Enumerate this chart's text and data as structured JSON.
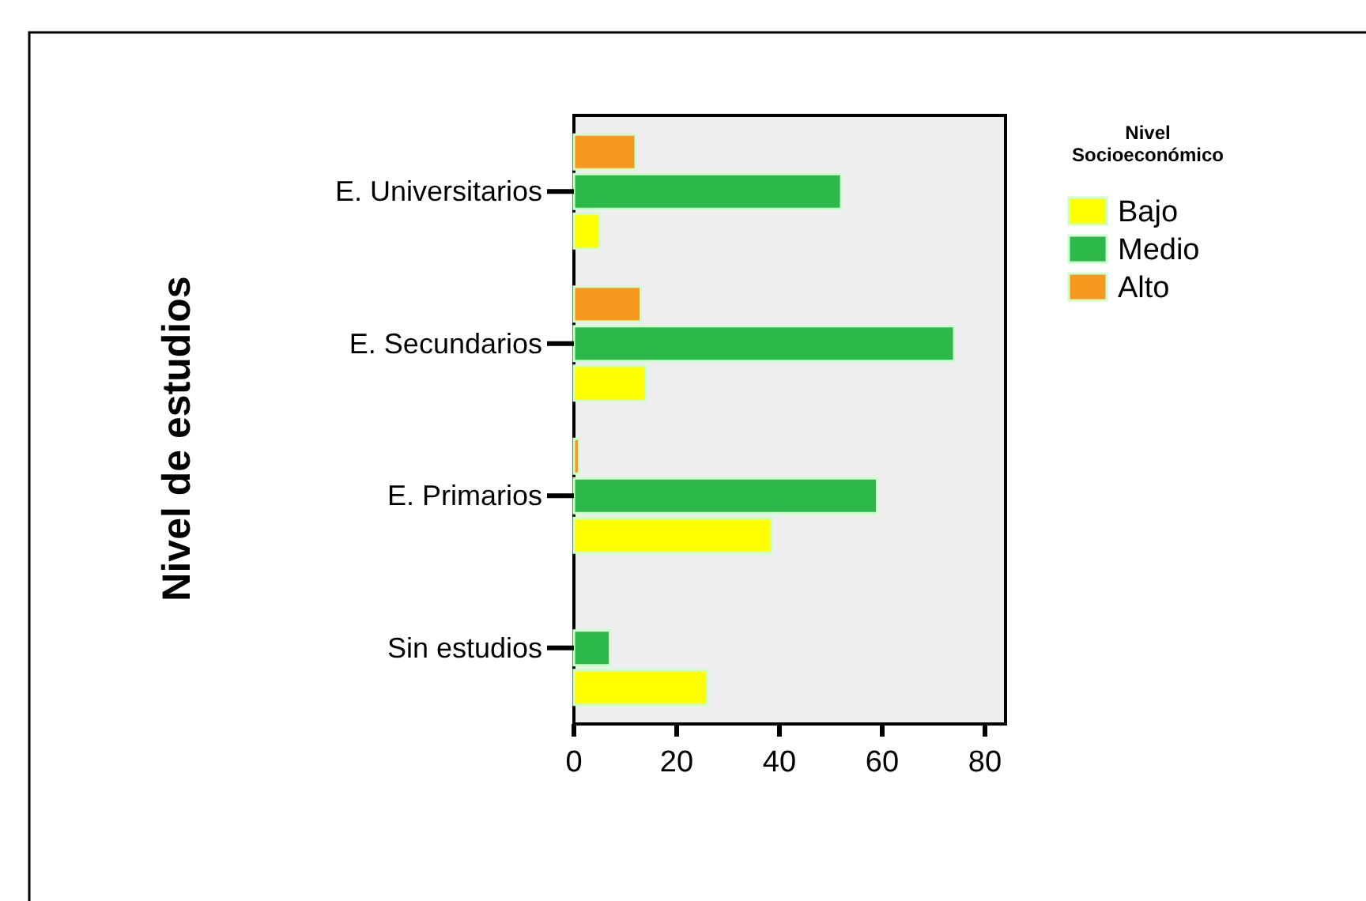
{
  "chart_data": {
    "type": "bar",
    "orientation": "horizontal",
    "ylabel": "Nivel de estudios",
    "legend_title": "Nivel Socioeconómico",
    "categories": [
      "E. Universitarios",
      "E. Secundarios",
      "E. Primarios",
      "Sin estudios"
    ],
    "series": [
      {
        "name": "Bajo",
        "color": "#ffff00",
        "values": [
          5,
          14,
          38.5,
          26
        ]
      },
      {
        "name": "Medio",
        "color": "#2db84a",
        "values": [
          52,
          74,
          59,
          7
        ]
      },
      {
        "name": "Alto",
        "color": "#f7981f",
        "values": [
          12,
          13,
          1,
          null
        ]
      }
    ],
    "xlim": [
      0,
      84
    ],
    "xticks": [
      0,
      20,
      40,
      60,
      80
    ],
    "grid": false,
    "legend": "right"
  }
}
